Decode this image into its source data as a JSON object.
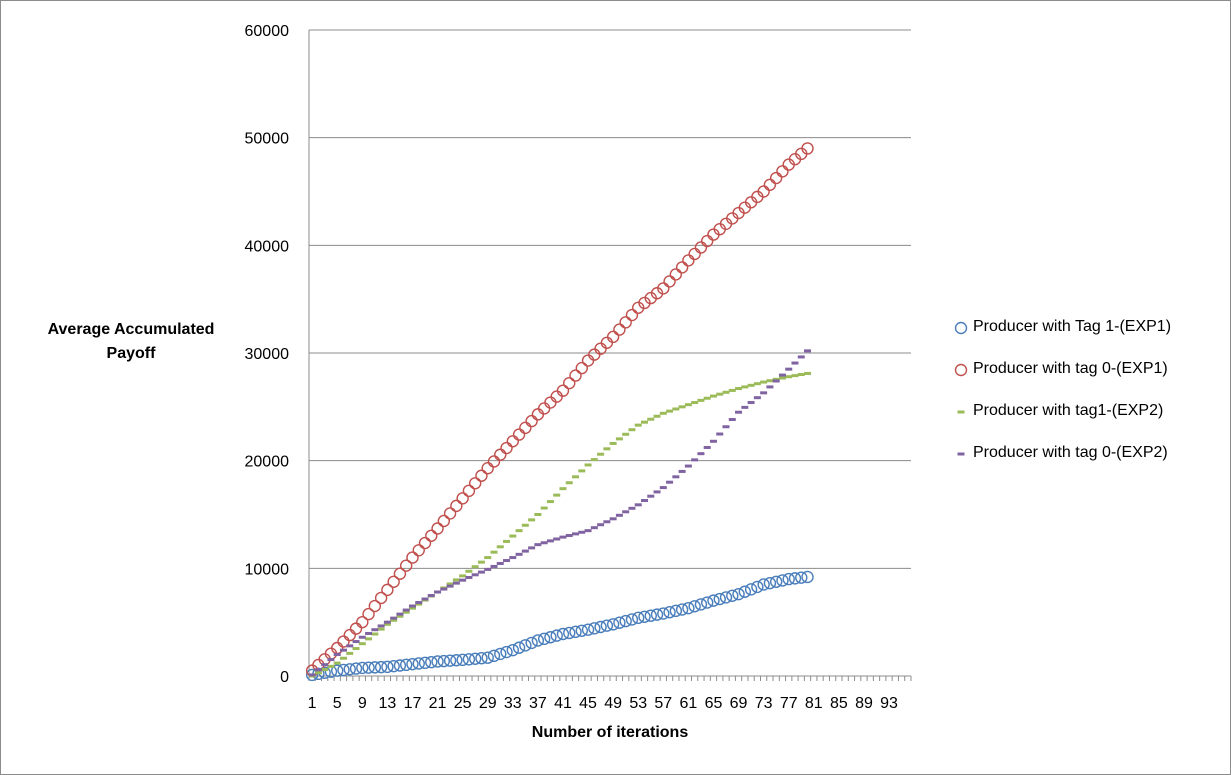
{
  "chart_data": {
    "type": "scatter",
    "title": "",
    "xlabel": "Number of iterations",
    "ylabel": "Average Accumulated Payoff",
    "ylim": [
      0,
      60000
    ],
    "xlim": [
      0,
      96
    ],
    "yticks": [
      "0",
      "10000",
      "20000",
      "30000",
      "40000",
      "50000",
      "60000"
    ],
    "xticks": [
      "1",
      "5",
      "9",
      "13",
      "17",
      "21",
      "25",
      "29",
      "33",
      "37",
      "41",
      "45",
      "49",
      "53",
      "57",
      "61",
      "65",
      "69",
      "73",
      "77",
      "81",
      "85",
      "89",
      "93"
    ],
    "grid": true,
    "legend_position": "right",
    "series": [
      {
        "name": "Producer with Tag 1-(EXP1)",
        "marker": "circle",
        "color": "#4a7ebb",
        "x": [
          1,
          5,
          9,
          13,
          17,
          21,
          25,
          29,
          33,
          37,
          41,
          45,
          49,
          53,
          57,
          61,
          65,
          69,
          73,
          77,
          80
        ],
        "y": [
          100,
          500,
          750,
          850,
          1100,
          1350,
          1500,
          1700,
          2400,
          3300,
          3900,
          4300,
          4800,
          5400,
          5800,
          6300,
          7000,
          7600,
          8500,
          9000,
          9200
        ]
      },
      {
        "name": "Producer with tag 0-(EXP1)",
        "marker": "circle",
        "color": "#c0504d",
        "x": [
          1,
          5,
          9,
          13,
          17,
          21,
          25,
          29,
          33,
          37,
          41,
          45,
          49,
          53,
          57,
          61,
          65,
          69,
          73,
          77,
          80
        ],
        "y": [
          500,
          2600,
          5000,
          8000,
          11000,
          13700,
          16500,
          19300,
          21800,
          24300,
          26500,
          29300,
          31500,
          34200,
          36000,
          38600,
          41000,
          43000,
          45000,
          47500,
          49000
        ]
      },
      {
        "name": "Producer with tag1-(EXP2)",
        "marker": "dash",
        "color": "#9bbb59",
        "x": [
          1,
          5,
          9,
          13,
          17,
          21,
          25,
          29,
          33,
          37,
          41,
          45,
          49,
          53,
          57,
          61,
          65,
          69,
          73,
          77,
          80
        ],
        "y": [
          0,
          1200,
          3000,
          4800,
          6300,
          7800,
          9300,
          11000,
          13000,
          15000,
          17400,
          19600,
          21600,
          23300,
          24400,
          25200,
          26000,
          26700,
          27300,
          27800,
          28100
        ]
      },
      {
        "name": "Producer with tag 0-(EXP2)",
        "marker": "dash",
        "color": "#8064a2",
        "x": [
          1,
          5,
          9,
          13,
          17,
          21,
          25,
          29,
          33,
          37,
          41,
          45,
          49,
          53,
          57,
          61,
          65,
          69,
          73,
          77,
          80
        ],
        "y": [
          100,
          2000,
          3600,
          5000,
          6500,
          7800,
          8900,
          9900,
          11000,
          12200,
          12900,
          13500,
          14600,
          15900,
          17500,
          19500,
          21800,
          24500,
          26300,
          28500,
          30200
        ]
      }
    ]
  }
}
